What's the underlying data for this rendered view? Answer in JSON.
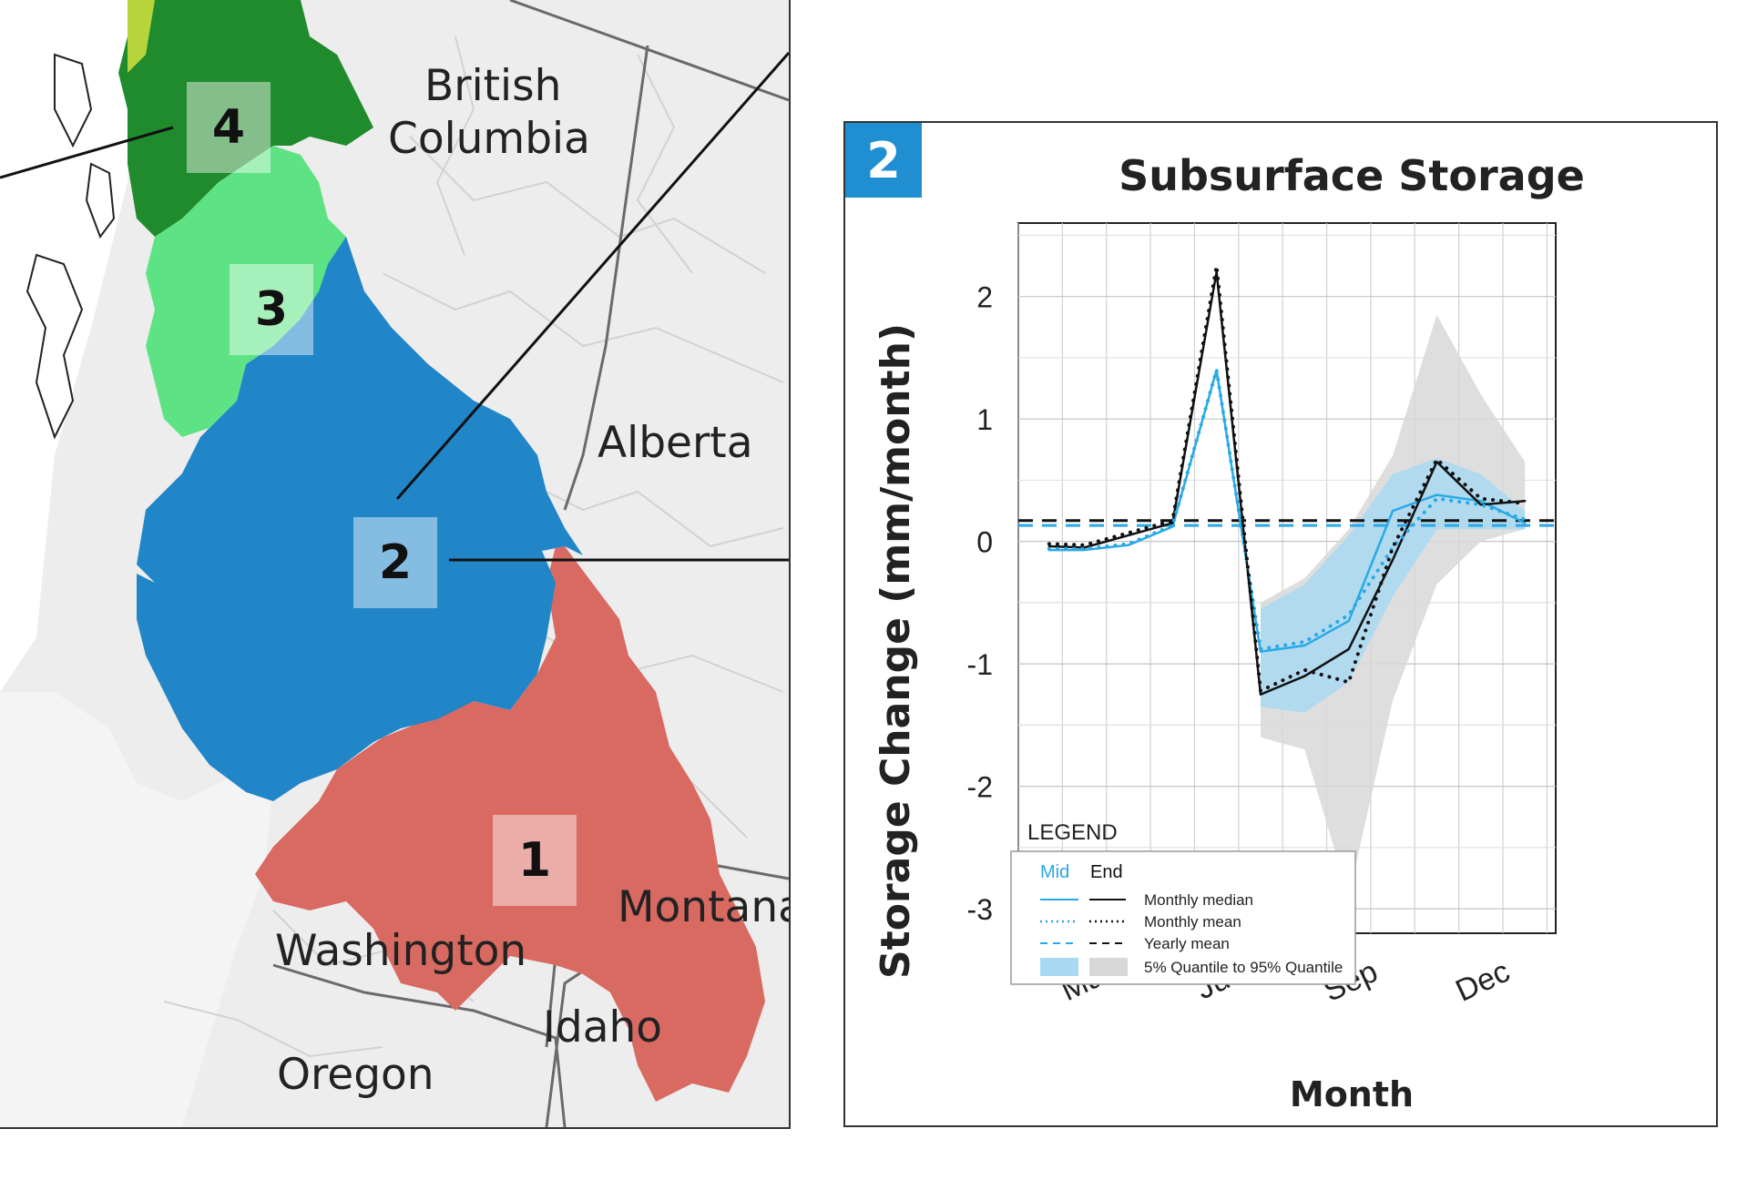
{
  "map": {
    "regions": [
      {
        "id": "1",
        "color": "#d96a62"
      },
      {
        "id": "2",
        "color": "#2186c8"
      },
      {
        "id": "3",
        "color": "#5ee384"
      },
      {
        "id": "4",
        "color": "#1f8b2d"
      }
    ],
    "labels": {
      "british_columbia_1": "British",
      "british_columbia_2": "Columbia",
      "alberta": "Alberta",
      "washington": "Washington",
      "montana": "Montana",
      "idaho": "Idaho",
      "oregon": "Oregon"
    }
  },
  "chart_data": {
    "type": "line",
    "panel_number": "2",
    "title": "Subsurface Storage",
    "xlabel": "Month",
    "ylabel": "Storage Change (mm/month)",
    "x_ticks": [
      "Mar",
      "Jun",
      "Sep",
      "Dec"
    ],
    "x_tick_months": [
      3,
      6,
      9,
      12
    ],
    "xlim": [
      1,
      13.2
    ],
    "ylim": [
      -3.2,
      2.6
    ],
    "y_ticks": [
      -3,
      -2,
      -1,
      0,
      1,
      2
    ],
    "grid": true,
    "legend_position": "bottom-left",
    "colors": {
      "mid": "#29a9e6",
      "end": "#111111",
      "band_mid": "#a9d9f2",
      "band_end": "#d8d8d8"
    },
    "legend": {
      "heading": "LEGEND",
      "col_mid": "Mid",
      "col_end": "End",
      "rows": [
        "Monthly median",
        "Monthly mean",
        "Yearly mean",
        "5% Quantile to 95% Quantile"
      ]
    },
    "series": [
      {
        "name": "Mid Monthly median",
        "style": "solid",
        "color": "mid",
        "x": [
          1.7,
          2.5,
          3.5,
          4.5,
          5.5,
          6.5,
          7.5,
          8.5,
          9.5,
          10.5,
          11.5,
          12.5
        ],
        "y": [
          -0.07,
          -0.07,
          -0.03,
          0.12,
          1.4,
          -0.9,
          -0.85,
          -0.65,
          0.25,
          0.38,
          0.33,
          0.15
        ]
      },
      {
        "name": "End Monthly median",
        "style": "solid",
        "color": "end",
        "x": [
          1.7,
          2.5,
          3.5,
          4.5,
          5.5,
          6.5,
          7.5,
          8.5,
          9.5,
          10.5,
          11.5,
          12.5
        ],
        "y": [
          -0.04,
          -0.05,
          0.05,
          0.15,
          2.2,
          -1.25,
          -1.1,
          -0.88,
          -0.15,
          0.65,
          0.3,
          0.33
        ]
      },
      {
        "name": "Mid Monthly mean",
        "style": "dotted",
        "color": "mid",
        "x": [
          1.7,
          2.5,
          3.5,
          4.5,
          5.5,
          6.5,
          7.5,
          8.5,
          9.5,
          10.5,
          11.5,
          12.5
        ],
        "y": [
          -0.06,
          -0.06,
          -0.02,
          0.13,
          1.4,
          -0.88,
          -0.82,
          -0.6,
          -0.05,
          0.35,
          0.3,
          0.18
        ]
      },
      {
        "name": "End Monthly mean",
        "style": "dotted",
        "color": "end",
        "x": [
          1.7,
          2.5,
          3.5,
          4.5,
          5.5,
          6.5,
          7.5,
          8.5,
          9.5,
          10.5,
          11.5,
          12.5
        ],
        "y": [
          -0.02,
          -0.03,
          0.07,
          0.17,
          2.25,
          -1.22,
          -1.05,
          -1.15,
          -0.05,
          0.67,
          0.35,
          0.31
        ]
      }
    ],
    "yearly_mean": {
      "mid": 0.13,
      "end": 0.17
    },
    "bands": [
      {
        "name": "Mid 5% to 95%",
        "color": "band_mid",
        "x": [
          6.5,
          7.5,
          8.5,
          9.5,
          10.5,
          11.5,
          12.5
        ],
        "upper": [
          -0.55,
          -0.35,
          0.05,
          0.55,
          0.68,
          0.55,
          0.25
        ],
        "lower": [
          -1.35,
          -1.4,
          -1.15,
          -0.45,
          0.1,
          0.1,
          0.1
        ]
      },
      {
        "name": "End 5% to 95%",
        "color": "band_end",
        "x": [
          6.5,
          7.5,
          8.5,
          9.5,
          10.5,
          11.5,
          12.5
        ],
        "upper": [
          -0.5,
          -0.3,
          0.1,
          0.7,
          1.85,
          1.2,
          0.65
        ],
        "lower": [
          -1.6,
          -1.7,
          -2.9,
          -1.3,
          -0.35,
          0.0,
          0.1
        ]
      }
    ]
  }
}
